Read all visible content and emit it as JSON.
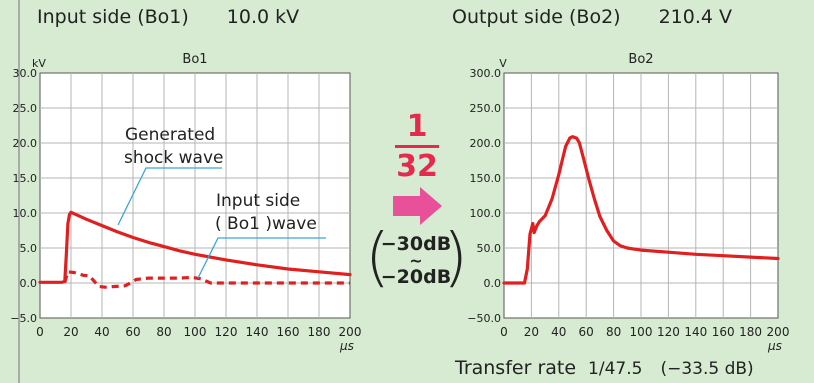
{
  "left": {
    "header_label": "Input side (Bo1)",
    "header_value": "10.0 kV"
  },
  "right": {
    "header_label": "Output side (Bo2)",
    "header_value": "210.4 V"
  },
  "middle": {
    "ratio_numerator": "1",
    "ratio_denominator": "32",
    "db_top": "−30dB",
    "db_tilde": "~",
    "db_bottom": "−20dB",
    "arrow_color": "#e8509a"
  },
  "footer": {
    "label": "Transfer rate",
    "value": "1/47.5",
    "db": "(−33.5 dB)"
  },
  "chart_data": [
    {
      "type": "line",
      "title": "Bo1",
      "ylabel": "kV",
      "xlabel": "μs",
      "xlim": [
        0,
        200
      ],
      "ylim": [
        -5,
        30
      ],
      "xticks": [
        "0",
        "20",
        "40",
        "60",
        "80",
        "100",
        "120",
        "140",
        "160",
        "180",
        "200"
      ],
      "yticks": [
        "30.0",
        "25.0",
        "20.0",
        "15.0",
        "10.0",
        "5.0",
        "0.0",
        "−5.0"
      ],
      "grid": true,
      "series": [
        {
          "style": "solid",
          "color": "#e02020",
          "x": [
            0,
            14,
            16,
            17,
            18,
            19,
            20,
            25,
            30,
            40,
            50,
            60,
            70,
            80,
            90,
            100,
            120,
            140,
            160,
            180,
            200
          ],
          "y": [
            0.1,
            0.1,
            0.2,
            4.0,
            8.5,
            9.8,
            10.1,
            9.6,
            9.1,
            8.2,
            7.3,
            6.5,
            5.8,
            5.2,
            4.6,
            4.1,
            3.3,
            2.6,
            2.0,
            1.6,
            1.2
          ]
        },
        {
          "style": "dashed",
          "color": "#e02020",
          "x": [
            16,
            18,
            22,
            28,
            32,
            38,
            42,
            48,
            55,
            62,
            70,
            80,
            90,
            98,
            104,
            110,
            130,
            160,
            200
          ],
          "y": [
            0.1,
            1.6,
            1.5,
            1.1,
            1.0,
            -0.5,
            -0.6,
            -0.5,
            -0.4,
            0.5,
            0.7,
            0.7,
            0.7,
            0.8,
            0.6,
            0.0,
            0.0,
            0.0,
            0.0
          ]
        }
      ],
      "annotations": [
        {
          "text_line1": "Generated",
          "text_line2": "shock wave"
        },
        {
          "text_line1": "Input side",
          "text_line2": "( Bo1 )wave"
        }
      ]
    },
    {
      "type": "line",
      "title": "Bo2",
      "ylabel": "V",
      "xlabel": "μs",
      "xlim": [
        0,
        200
      ],
      "ylim": [
        -50,
        300
      ],
      "xticks": [
        "0",
        "20",
        "40",
        "60",
        "80",
        "100",
        "120",
        "140",
        "160",
        "180",
        "200"
      ],
      "yticks": [
        "300.0",
        "250.0",
        "200.0",
        "150.0",
        "100.0",
        "50.0",
        "0.0",
        "−50.0"
      ],
      "grid": true,
      "series": [
        {
          "style": "solid",
          "color": "#e02020",
          "x": [
            0,
            15,
            17,
            19,
            21,
            22,
            24,
            26,
            30,
            35,
            40,
            45,
            48,
            50,
            53,
            55,
            58,
            62,
            66,
            70,
            75,
            80,
            85,
            90,
            100,
            120,
            140,
            160,
            180,
            200
          ],
          "y": [
            0,
            0,
            20,
            70,
            85,
            72,
            82,
            88,
            96,
            120,
            155,
            195,
            207,
            209,
            207,
            200,
            178,
            148,
            120,
            95,
            75,
            60,
            53,
            50,
            47,
            44,
            41,
            39,
            37,
            35
          ]
        }
      ]
    }
  ]
}
